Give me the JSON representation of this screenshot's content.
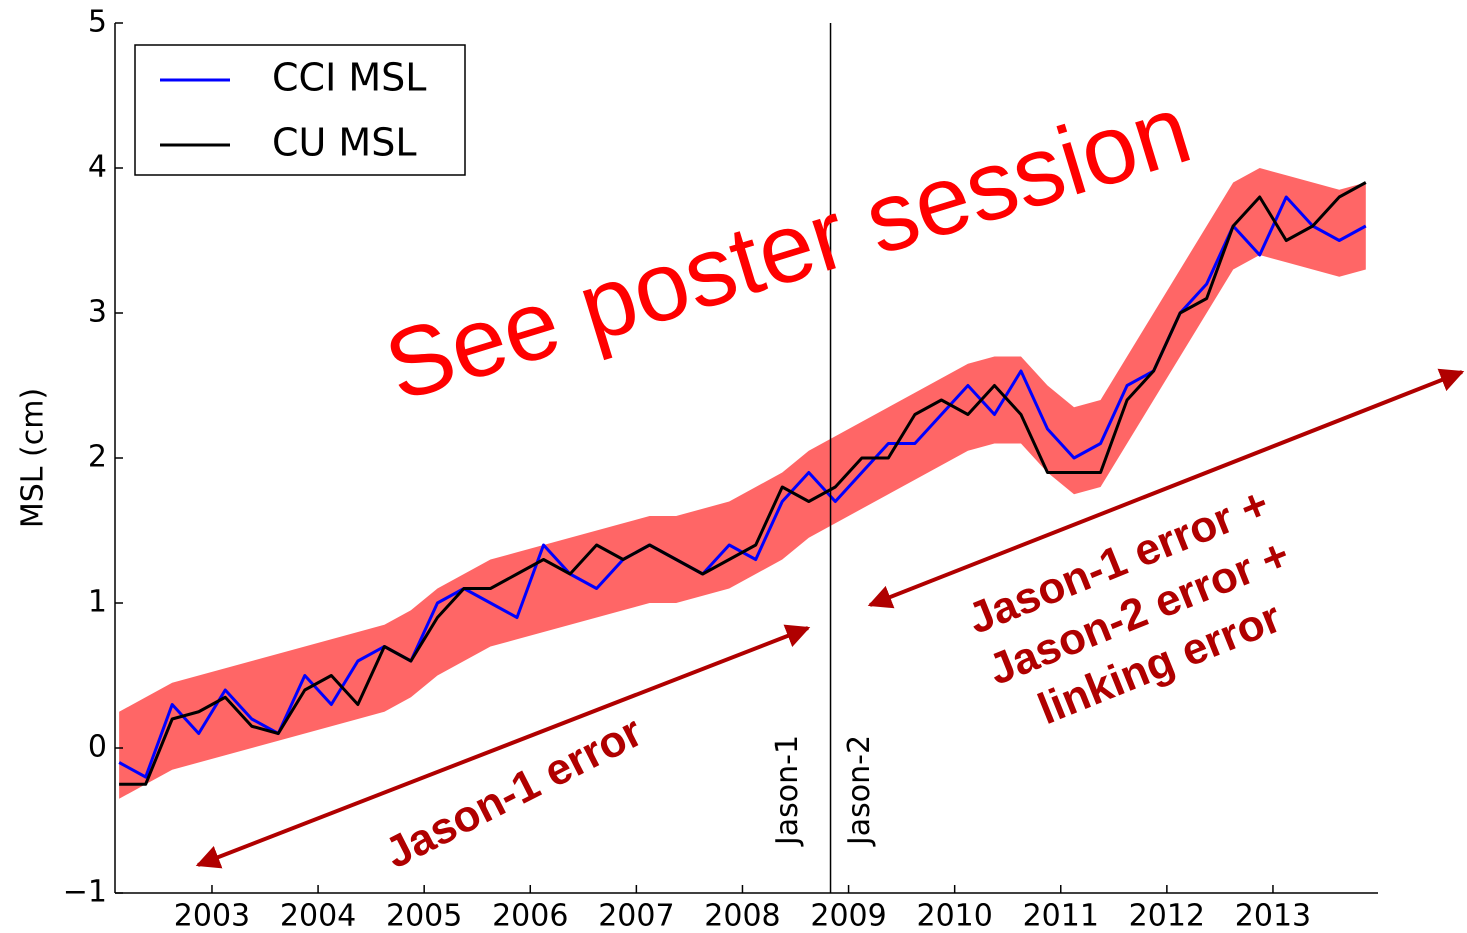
{
  "chart_data": {
    "type": "line",
    "ylabel": "MSL (cm)",
    "x": [
      2002.125,
      2002.375,
      2002.625,
      2002.875,
      2003.125,
      2003.375,
      2003.625,
      2003.875,
      2004.125,
      2004.375,
      2004.625,
      2004.875,
      2005.125,
      2005.375,
      2005.625,
      2005.875,
      2006.125,
      2006.375,
      2006.625,
      2006.875,
      2007.125,
      2007.375,
      2007.625,
      2007.875,
      2008.125,
      2008.375,
      2008.625,
      2008.875,
      2009.125,
      2009.375,
      2009.625,
      2009.875,
      2010.125,
      2010.375,
      2010.625,
      2010.875,
      2011.125,
      2011.375,
      2011.625,
      2011.875,
      2012.125,
      2012.375,
      2012.625,
      2012.875,
      2013.125,
      2013.375,
      2013.625,
      2013.875
    ],
    "series": [
      {
        "name": "CCI MSL",
        "color": "#0000ff",
        "values": [
          -0.1,
          -0.2,
          0.3,
          0.1,
          0.4,
          0.2,
          0.1,
          0.5,
          0.3,
          0.6,
          0.7,
          0.6,
          1.0,
          1.1,
          1.0,
          0.9,
          1.4,
          1.2,
          1.1,
          1.3,
          1.4,
          1.3,
          1.2,
          1.4,
          1.3,
          1.7,
          1.9,
          1.7,
          1.9,
          2.1,
          2.1,
          2.3,
          2.5,
          2.3,
          2.6,
          2.2,
          2.0,
          2.1,
          2.5,
          2.6,
          3.0,
          3.2,
          3.6,
          3.4,
          3.8,
          3.6,
          3.5,
          3.6
        ]
      },
      {
        "name": "CU MSL",
        "color": "#000000",
        "values": [
          -0.25,
          -0.25,
          0.2,
          0.25,
          0.35,
          0.15,
          0.1,
          0.4,
          0.5,
          0.3,
          0.7,
          0.6,
          0.9,
          1.1,
          1.1,
          1.2,
          1.3,
          1.2,
          1.4,
          1.3,
          1.4,
          1.3,
          1.2,
          1.3,
          1.4,
          1.8,
          1.7,
          1.8,
          2.0,
          2.0,
          2.3,
          2.4,
          2.3,
          2.5,
          2.3,
          1.9,
          1.9,
          1.9,
          2.4,
          2.6,
          3.0,
          3.1,
          3.6,
          3.8,
          3.5,
          3.6,
          3.8,
          3.9
        ]
      }
    ],
    "band": {
      "color": "#ff6666",
      "upper": [
        0.25,
        0.35,
        0.45,
        0.5,
        0.55,
        0.6,
        0.65,
        0.7,
        0.75,
        0.8,
        0.85,
        0.95,
        1.1,
        1.2,
        1.3,
        1.35,
        1.4,
        1.45,
        1.5,
        1.55,
        1.6,
        1.6,
        1.65,
        1.7,
        1.8,
        1.9,
        2.05,
        2.15,
        2.25,
        2.35,
        2.45,
        2.55,
        2.65,
        2.7,
        2.7,
        2.5,
        2.35,
        2.4,
        2.7,
        3.0,
        3.3,
        3.6,
        3.9,
        4.0,
        3.95,
        3.9,
        3.85,
        3.9
      ],
      "lower": [
        -0.35,
        -0.25,
        -0.15,
        -0.1,
        -0.05,
        0,
        0.05,
        0.1,
        0.15,
        0.2,
        0.25,
        0.35,
        0.5,
        0.6,
        0.7,
        0.75,
        0.8,
        0.85,
        0.9,
        0.95,
        1.0,
        1.0,
        1.05,
        1.1,
        1.2,
        1.3,
        1.45,
        1.55,
        1.65,
        1.75,
        1.85,
        1.95,
        2.05,
        2.1,
        2.1,
        1.9,
        1.75,
        1.8,
        2.1,
        2.4,
        2.7,
        3.0,
        3.3,
        3.4,
        3.35,
        3.3,
        3.25,
        3.3
      ]
    },
    "vline": {
      "x": 2008.83,
      "labels": [
        "Jason-1",
        "Jason-2"
      ]
    },
    "xlim": [
      2002.086,
      2013.99
    ],
    "ylim": [
      -1,
      5
    ],
    "xticks": [
      2003,
      2004,
      2005,
      2006,
      2007,
      2008,
      2009,
      2010,
      2011,
      2012,
      2013
    ],
    "yticks": [
      {
        "value": -1,
        "label": "−1"
      },
      0,
      1,
      2,
      3,
      4,
      5
    ],
    "legend": "upper left",
    "annotations": [
      "See poster session",
      "Jason-1 error",
      "Jason-1 error +",
      "Jason-2 error +",
      "linking error"
    ]
  }
}
